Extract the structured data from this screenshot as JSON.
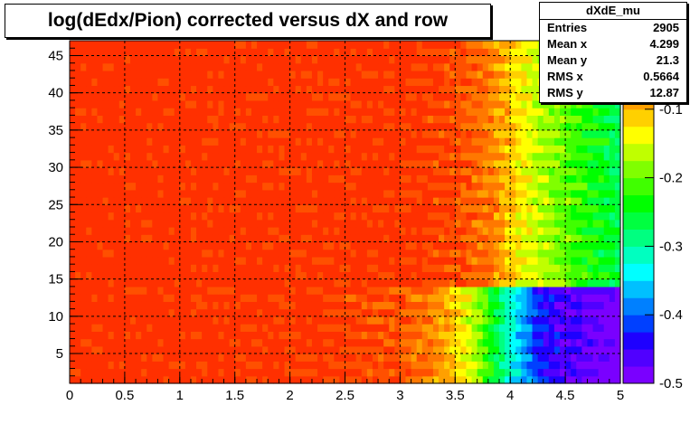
{
  "chart_data": {
    "type": "heatmap",
    "title": "log(dEdx/Pion) corrected versus dX and row",
    "xlabel": "",
    "ylabel": "",
    "xlim": [
      0,
      5
    ],
    "ylim": [
      1,
      47
    ],
    "zlim": [
      -0.5,
      0
    ],
    "grid": true,
    "x_ticks": [
      "0",
      "0.5",
      "1",
      "1.5",
      "2",
      "2.5",
      "3",
      "3.5",
      "4",
      "4.5",
      "5"
    ],
    "y_ticks": [
      "5",
      "10",
      "15",
      "20",
      "25",
      "30",
      "35",
      "40",
      "45"
    ],
    "z_ticks": [
      "-0.1",
      "-0.2",
      "-0.3",
      "-0.4",
      "-0.5"
    ],
    "palette": [
      "#7a00ff",
      "#5000ff",
      "#1e00ff",
      "#0040ff",
      "#0080ff",
      "#00c0ff",
      "#00ffff",
      "#00ffc0",
      "#00ff80",
      "#00ff40",
      "#00ff00",
      "#40ff00",
      "#80ff00",
      "#c0ff00",
      "#ffff00",
      "#ffd000",
      "#ffa000",
      "#ff7800",
      "#ff5000",
      "#ff3000"
    ],
    "regions": [
      {
        "rows": [
          1,
          14
        ],
        "values": [
          [
            0,
            0
          ],
          [
            1.4,
            -0.01
          ],
          [
            2.2,
            -0.015
          ],
          [
            3.0,
            -0.04
          ],
          [
            3.3,
            -0.07
          ],
          [
            3.6,
            -0.14
          ],
          [
            3.8,
            -0.22
          ],
          [
            4.0,
            -0.32
          ],
          [
            4.3,
            -0.44
          ],
          [
            5.0,
            -0.5
          ]
        ]
      },
      {
        "rows": [
          14,
          47
        ],
        "values": [
          [
            0,
            0
          ],
          [
            3.0,
            -0.01
          ],
          [
            3.5,
            -0.03
          ],
          [
            3.85,
            -0.07
          ],
          [
            4.0,
            -0.11
          ],
          [
            4.3,
            -0.17
          ],
          [
            4.7,
            -0.23
          ],
          [
            5.0,
            -0.27
          ]
        ]
      }
    ]
  },
  "stats": {
    "name": "dXdE_mu",
    "rows": [
      {
        "label": "Entries",
        "value": "2905"
      },
      {
        "label": "Mean x",
        "value": "4.299"
      },
      {
        "label": "Mean y",
        "value": "21.3"
      },
      {
        "label": "RMS x",
        "value": "0.5664"
      },
      {
        "label": "RMS y",
        "value": "12.87"
      }
    ]
  }
}
